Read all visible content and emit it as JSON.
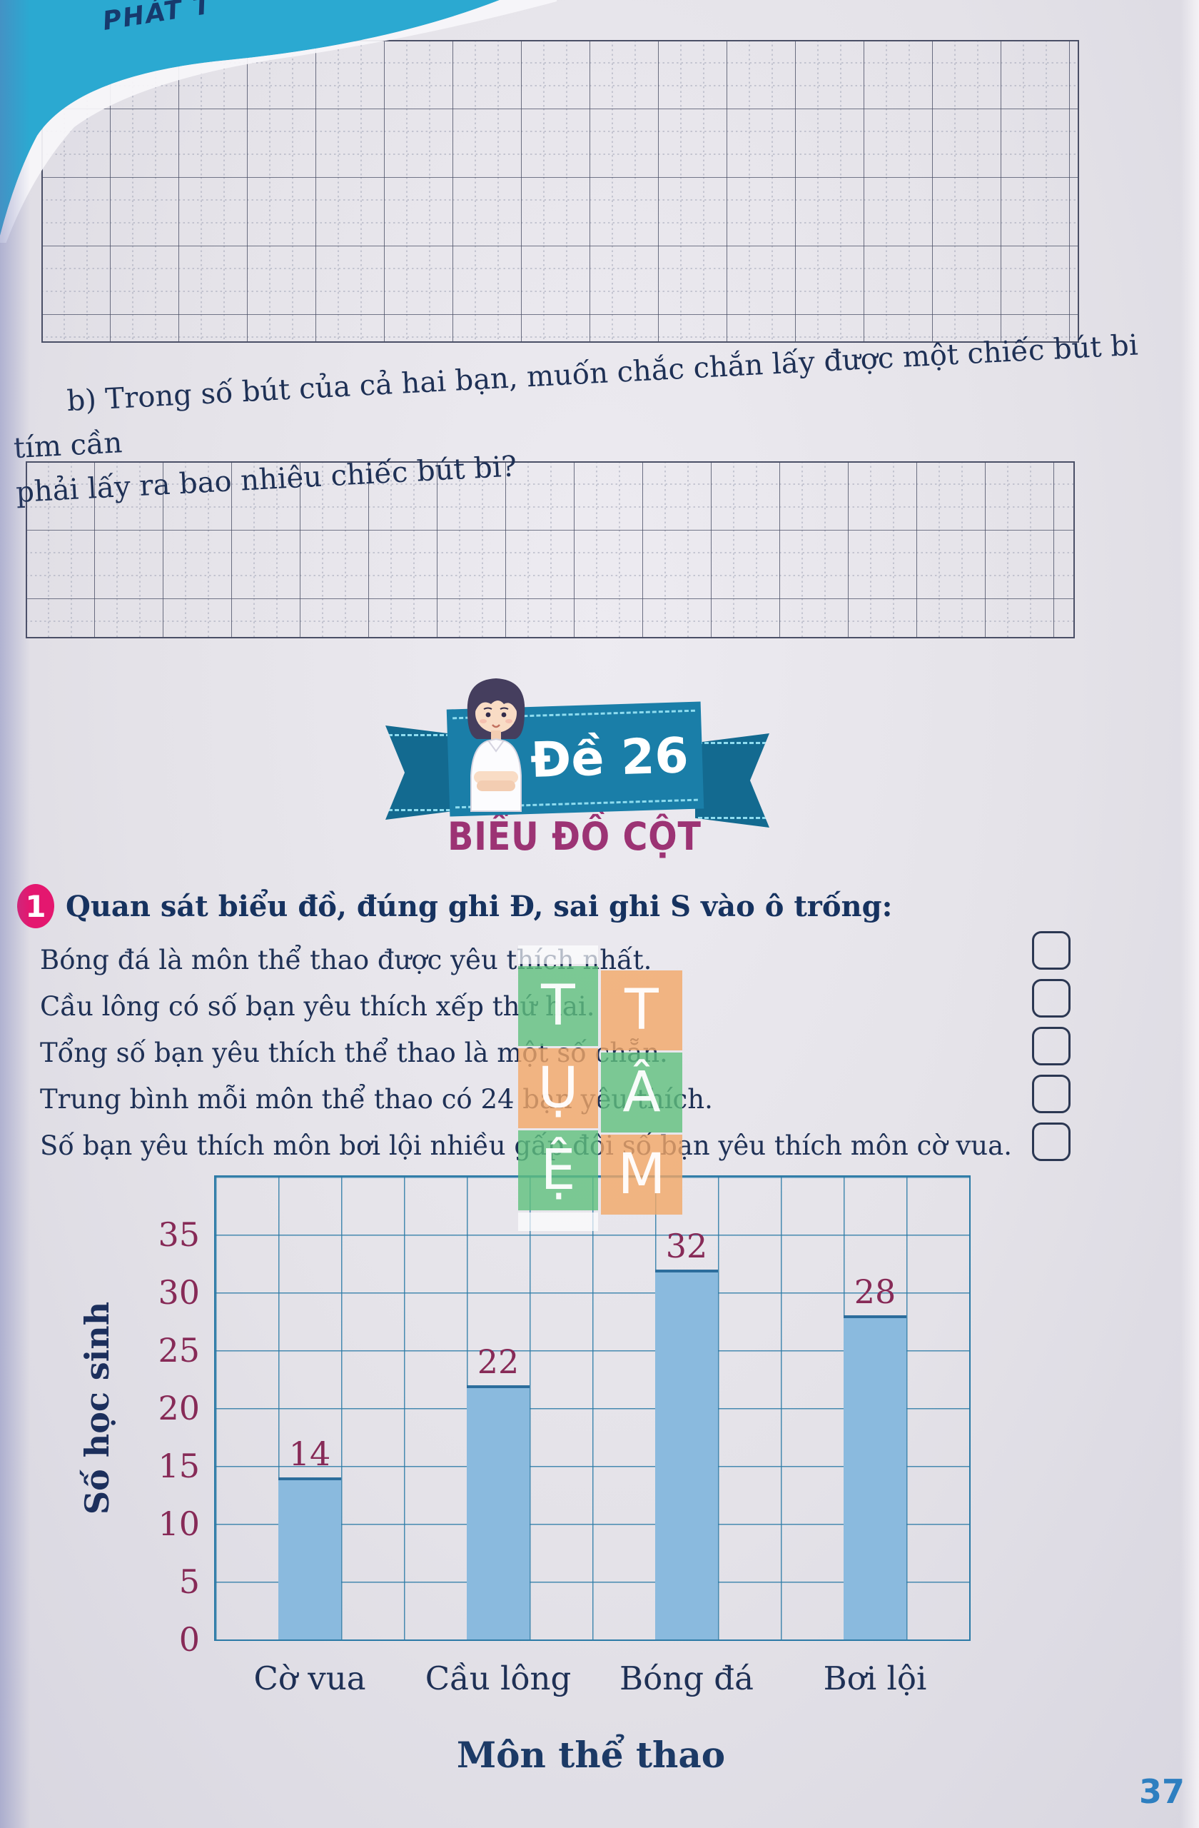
{
  "page": {
    "corner_label": "PHÁT T",
    "page_number": "37",
    "colors": {
      "banner_teal": "#1a7ea8",
      "ribbon_tail_teal": "#136a90",
      "title_magenta": "#9c3374",
      "badge_pink": "#e4176f",
      "text_navy": "#1e3055",
      "heading_navy": "#16325f",
      "tick_maroon": "#872a57",
      "bar_fill": "#8abade",
      "bar_top_edge": "#2c6d9c",
      "chart_grid_blue": "#2b7aa6",
      "watermark_green": "#5fc07d",
      "watermark_orange": "#f3a867",
      "page_number_blue": "#2e7fc0",
      "corner_cyan": "#2ba9d1"
    }
  },
  "question_b": {
    "line1": "b) Trong số bút của cả hai bạn, muốn chắc chắn lấy được một chiếc bút bi tím cần",
    "line2": "phải lấy ra bao nhiêu chiếc bút bi?"
  },
  "banner": {
    "label": "Đề 26"
  },
  "section_title": "BIỂU ĐỒ CỘT",
  "exercise": {
    "number": "1",
    "prompt": "Quan sát biểu đồ, đúng ghi Đ, sai ghi S vào ô trống:",
    "statements": [
      "Bóng đá là môn thể thao được yêu thích nhất.",
      "Cầu lông có số bạn yêu thích xếp thứ hai.",
      "Tổng số bạn yêu thích thể thao là một số chẵn.",
      "Trung bình mỗi môn thể thao có 24 bạn yêu thích.",
      "Số bạn yêu thích môn bơi lội nhiều gấp đôi số bạn yêu thích môn cờ vua."
    ],
    "answer_box_count": 5
  },
  "watermark": {
    "left_letters": [
      "T",
      "Ụ",
      "Ệ"
    ],
    "right_letters": [
      "T",
      "Â",
      "M"
    ]
  },
  "chart_data": {
    "type": "bar",
    "title": "",
    "categories": [
      "Cờ vua",
      "Cầu lông",
      "Bóng đá",
      "Bơi lội"
    ],
    "values": [
      14,
      22,
      32,
      28
    ],
    "xlabel": "Môn thể thao",
    "ylabel": "Số học sinh",
    "ylim": [
      0,
      40
    ],
    "ytick_step": 5,
    "ytick_labels": [
      "0",
      "5",
      "10",
      "15",
      "20",
      "25",
      "30",
      "35"
    ],
    "grid": true,
    "legend": false
  }
}
